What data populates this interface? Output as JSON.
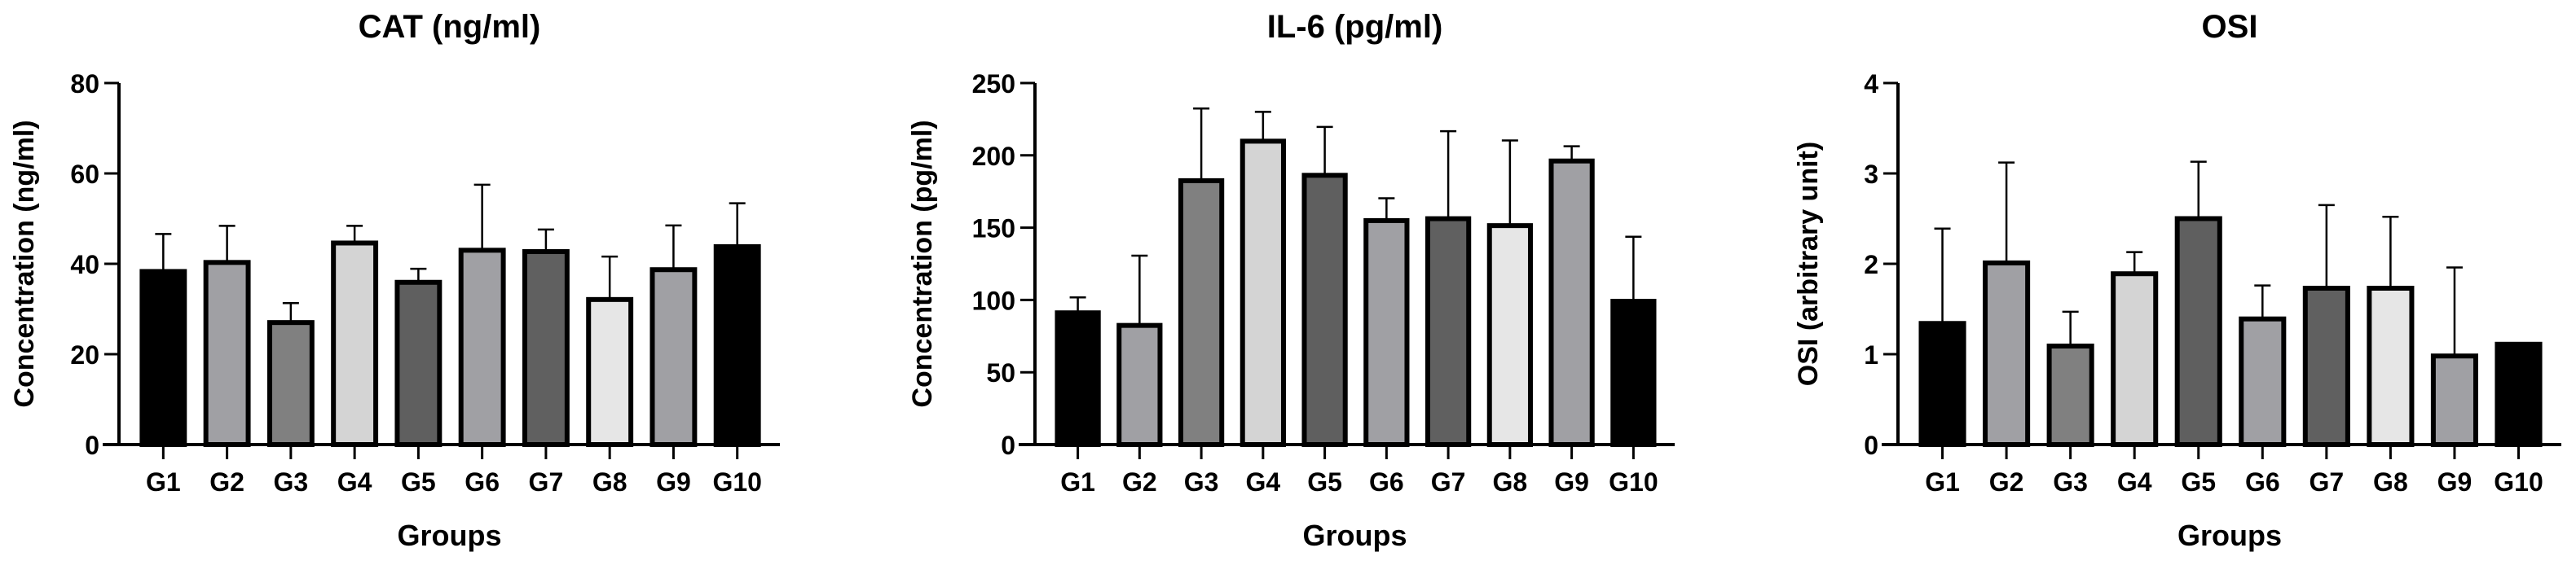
{
  "chart_data": [
    {
      "type": "bar",
      "title": "CAT (ng/ml)",
      "xlabel": "Groups",
      "ylabel": "Concentration (ng/ml)",
      "ylim": [
        0,
        80
      ],
      "yticks": [
        0,
        20,
        40,
        60,
        80
      ],
      "categories": [
        "G1",
        "G2",
        "G3",
        "G4",
        "G5",
        "G6",
        "G7",
        "G8",
        "G9",
        "G10"
      ],
      "values": [
        38.3,
        40.3,
        27.0,
        44.6,
        35.9,
        43.0,
        42.7,
        32.1,
        38.7,
        43.8
      ],
      "error_upper": [
        46.6,
        48.4,
        31.3,
        48.4,
        38.9,
        57.5,
        47.6,
        41.6,
        48.5,
        53.4
      ]
    },
    {
      "type": "bar",
      "title": "IL-6 (pg/ml)",
      "xlabel": "Groups",
      "ylabel": "Concentration (pg/ml)",
      "ylim": [
        0,
        250
      ],
      "yticks": [
        0,
        50,
        100,
        150,
        200,
        250
      ],
      "categories": [
        "G1",
        "G2",
        "G3",
        "G4",
        "G5",
        "G6",
        "G7",
        "G8",
        "G9",
        "G10"
      ],
      "values": [
        91.1,
        82.4,
        182.5,
        209.8,
        186.2,
        154.9,
        156.2,
        151.4,
        196.1,
        99.1
      ],
      "error_upper": [
        101.8,
        130.6,
        232.4,
        230.1,
        219.7,
        170.3,
        216.7,
        210.3,
        206.3,
        143.7
      ]
    },
    {
      "type": "bar",
      "title": "OSI",
      "xlabel": "Groups",
      "ylabel": "OSI (arbitrary unit)",
      "ylim": [
        0,
        4
      ],
      "yticks": [
        0,
        1,
        2,
        3,
        4
      ],
      "categories": [
        "G1",
        "G2",
        "G3",
        "G4",
        "G5",
        "G6",
        "G7",
        "G8",
        "G9",
        "G10"
      ],
      "values": [
        1.34,
        2.01,
        1.09,
        1.89,
        2.5,
        1.39,
        1.73,
        1.73,
        0.98,
        1.11
      ],
      "error_upper": [
        2.39,
        3.12,
        1.47,
        2.13,
        3.13,
        1.76,
        2.65,
        2.52,
        1.96,
        null
      ]
    }
  ],
  "colors": {
    "bar_fills": [
      "#000000",
      "#a0a0a4",
      "#808080",
      "#d4d4d4",
      "#5f5f5f",
      "#a0a0a4",
      "#606060",
      "#e6e6e6",
      "#a0a0a4",
      "#000000"
    ],
    "stroke": "#000000"
  }
}
